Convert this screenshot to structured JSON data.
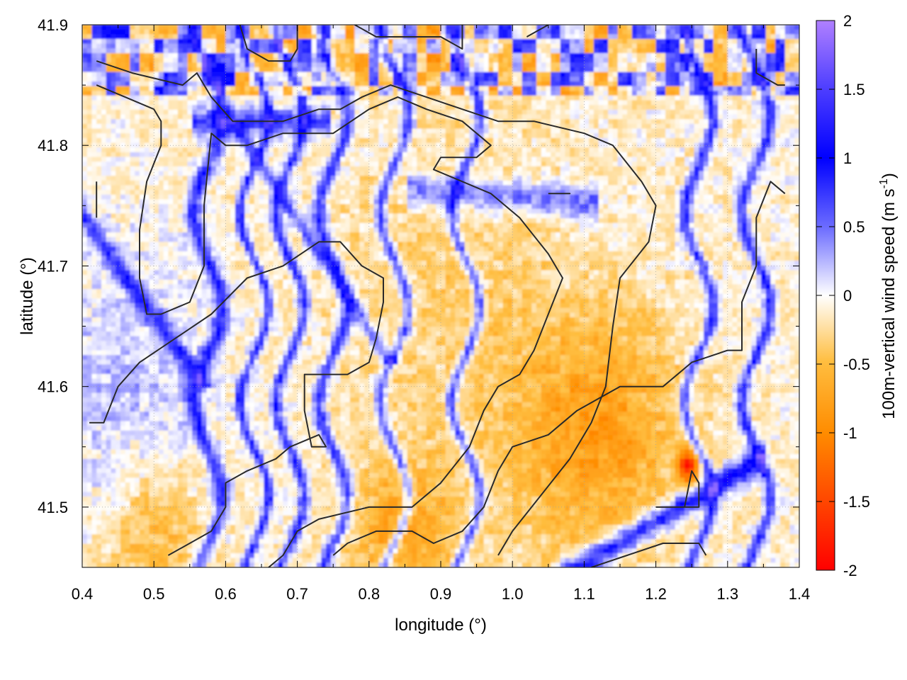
{
  "chart_data": {
    "type": "heatmap",
    "xlabel": "longitude (°)",
    "ylabel": "latitude (°)",
    "xlim": [
      0.4,
      1.4
    ],
    "ylim": [
      41.45,
      41.9
    ],
    "xticks": [
      "0.4",
      "0.5",
      "0.6",
      "0.7",
      "0.8",
      "0.9",
      "1.0",
      "1.1",
      "1.2",
      "1.3",
      "1.4"
    ],
    "yticks": [
      "41.5",
      "41.6",
      "41.7",
      "41.8",
      "41.9"
    ],
    "colorbar": {
      "label": "100m-vertical wind speed (m s",
      "label_superscript": "-1",
      "label_suffix": ")",
      "range": [
        -2,
        2
      ],
      "ticks": [
        "2",
        "1.5",
        "1",
        "0.5",
        "0",
        "-0.5",
        "-1",
        "-1.5",
        "-2"
      ],
      "colors": [
        "#ff0000",
        "#ff8c00",
        "#ffa500",
        "#ffffff",
        "#0000ff",
        "#b080ff"
      ]
    },
    "grid": true,
    "field_note": "vertical wind speed field (m s-1): updrafts blue/purple, downdrafts orange/red",
    "contours": [
      [
        [
          0.42,
          41.87
        ],
        [
          0.47,
          41.86
        ],
        [
          0.54,
          41.85
        ],
        [
          0.56,
          41.86
        ],
        [
          0.58,
          41.84
        ],
        [
          0.61,
          41.82
        ],
        [
          0.68,
          41.82
        ],
        [
          0.73,
          41.83
        ],
        [
          0.76,
          41.83
        ],
        [
          0.79,
          41.84
        ],
        [
          0.83,
          41.85
        ],
        [
          0.88,
          41.84
        ],
        [
          0.93,
          41.83
        ],
        [
          0.98,
          41.82
        ],
        [
          1.03,
          41.82
        ],
        [
          1.1,
          41.81
        ],
        [
          1.14,
          41.8
        ],
        [
          1.18,
          41.77
        ],
        [
          1.2,
          41.75
        ],
        [
          1.19,
          41.72
        ],
        [
          1.15,
          41.69
        ],
        [
          1.14,
          41.65
        ],
        [
          1.13,
          41.6
        ],
        [
          1.11,
          41.57
        ],
        [
          1.08,
          41.54
        ],
        [
          1.04,
          41.51
        ],
        [
          1.0,
          41.48
        ],
        [
          0.98,
          41.46
        ]
      ],
      [
        [
          0.42,
          41.85
        ],
        [
          0.46,
          41.84
        ],
        [
          0.5,
          41.83
        ],
        [
          0.51,
          41.82
        ],
        [
          0.51,
          41.8
        ],
        [
          0.49,
          41.77
        ],
        [
          0.48,
          41.73
        ],
        [
          0.48,
          41.69
        ],
        [
          0.49,
          41.66
        ],
        [
          0.51,
          41.66
        ],
        [
          0.55,
          41.67
        ],
        [
          0.57,
          41.7
        ],
        [
          0.57,
          41.75
        ],
        [
          0.58,
          41.81
        ],
        [
          0.6,
          41.8
        ],
        [
          0.63,
          41.8
        ],
        [
          0.68,
          41.81
        ],
        [
          0.75,
          41.81
        ],
        [
          0.8,
          41.83
        ],
        [
          0.84,
          41.84
        ],
        [
          0.88,
          41.83
        ],
        [
          0.93,
          41.82
        ],
        [
          0.97,
          41.8
        ],
        [
          0.95,
          41.79
        ],
        [
          0.92,
          41.79
        ],
        [
          0.9,
          41.79
        ],
        [
          0.89,
          41.78
        ],
        [
          0.93,
          41.77
        ],
        [
          0.97,
          41.76
        ],
        [
          1.01,
          41.74
        ],
        [
          1.05,
          41.71
        ],
        [
          1.07,
          41.69
        ],
        [
          1.05,
          41.66
        ],
        [
          1.03,
          41.63
        ],
        [
          1.01,
          41.61
        ],
        [
          0.98,
          41.6
        ],
        [
          0.96,
          41.58
        ],
        [
          0.94,
          41.55
        ],
        [
          0.9,
          41.52
        ],
        [
          0.86,
          41.5
        ],
        [
          0.8,
          41.5
        ],
        [
          0.73,
          41.49
        ],
        [
          0.7,
          41.48
        ],
        [
          0.68,
          41.46
        ],
        [
          0.66,
          41.45
        ]
      ],
      [
        [
          0.41,
          41.57
        ],
        [
          0.43,
          41.57
        ],
        [
          0.45,
          41.6
        ],
        [
          0.48,
          41.62
        ],
        [
          0.53,
          41.64
        ],
        [
          0.58,
          41.66
        ],
        [
          0.63,
          41.69
        ],
        [
          0.68,
          41.7
        ],
        [
          0.73,
          41.72
        ],
        [
          0.76,
          41.72
        ],
        [
          0.79,
          41.7
        ],
        [
          0.82,
          41.69
        ],
        [
          0.82,
          41.67
        ],
        [
          0.81,
          41.64
        ],
        [
          0.8,
          41.62
        ],
        [
          0.77,
          41.61
        ],
        [
          0.71,
          41.61
        ],
        [
          0.71,
          41.58
        ],
        [
          0.72,
          41.55
        ],
        [
          0.74,
          41.55
        ],
        [
          0.73,
          41.56
        ],
        [
          0.69,
          41.55
        ],
        [
          0.67,
          41.54
        ],
        [
          0.63,
          41.53
        ],
        [
          0.6,
          41.52
        ],
        [
          0.6,
          41.5
        ],
        [
          0.58,
          41.48
        ],
        [
          0.55,
          41.47
        ],
        [
          0.52,
          41.46
        ]
      ],
      [
        [
          0.75,
          41.46
        ],
        [
          0.77,
          41.47
        ],
        [
          0.81,
          41.48
        ],
        [
          0.86,
          41.48
        ],
        [
          0.89,
          41.47
        ],
        [
          0.93,
          41.48
        ],
        [
          0.96,
          41.5
        ],
        [
          0.98,
          41.53
        ],
        [
          1.0,
          41.55
        ],
        [
          1.05,
          41.56
        ],
        [
          1.09,
          41.58
        ],
        [
          1.12,
          41.59
        ],
        [
          1.15,
          41.6
        ],
        [
          1.18,
          41.6
        ],
        [
          1.21,
          41.6
        ],
        [
          1.25,
          41.62
        ],
        [
          1.3,
          41.63
        ],
        [
          1.32,
          41.63
        ],
        [
          1.32,
          41.67
        ],
        [
          1.34,
          41.7
        ],
        [
          1.34,
          41.74
        ],
        [
          1.36,
          41.77
        ],
        [
          1.38,
          41.76
        ]
      ],
      [
        [
          1.11,
          41.45
        ],
        [
          1.16,
          41.46
        ],
        [
          1.21,
          41.47
        ],
        [
          1.26,
          41.47
        ],
        [
          1.27,
          41.46
        ]
      ],
      [
        [
          1.2,
          41.5
        ],
        [
          1.24,
          41.5
        ],
        [
          1.25,
          41.53
        ],
        [
          1.26,
          41.52
        ],
        [
          1.26,
          41.5
        ],
        [
          1.24,
          41.5
        ],
        [
          1.2,
          41.5
        ]
      ],
      [
        [
          1.05,
          41.76
        ],
        [
          1.07,
          41.76
        ],
        [
          1.08,
          41.76
        ],
        [
          1.06,
          41.76
        ],
        [
          1.05,
          41.76
        ]
      ],
      [
        [
          0.62,
          41.9
        ],
        [
          0.63,
          41.88
        ],
        [
          0.66,
          41.87
        ],
        [
          0.69,
          41.87
        ],
        [
          0.7,
          41.88
        ],
        [
          0.7,
          41.9
        ]
      ],
      [
        [
          0.78,
          41.9
        ],
        [
          0.81,
          41.89
        ],
        [
          0.86,
          41.89
        ],
        [
          0.9,
          41.89
        ],
        [
          0.93,
          41.88
        ],
        [
          0.93,
          41.9
        ]
      ],
      [
        [
          1.02,
          41.89
        ],
        [
          1.05,
          41.9
        ]
      ],
      [
        [
          1.34,
          41.88
        ],
        [
          1.34,
          41.86
        ],
        [
          1.37,
          41.85
        ],
        [
          1.38,
          41.85
        ]
      ],
      [
        [
          0.42,
          41.77
        ],
        [
          0.42,
          41.74
        ]
      ]
    ]
  }
}
